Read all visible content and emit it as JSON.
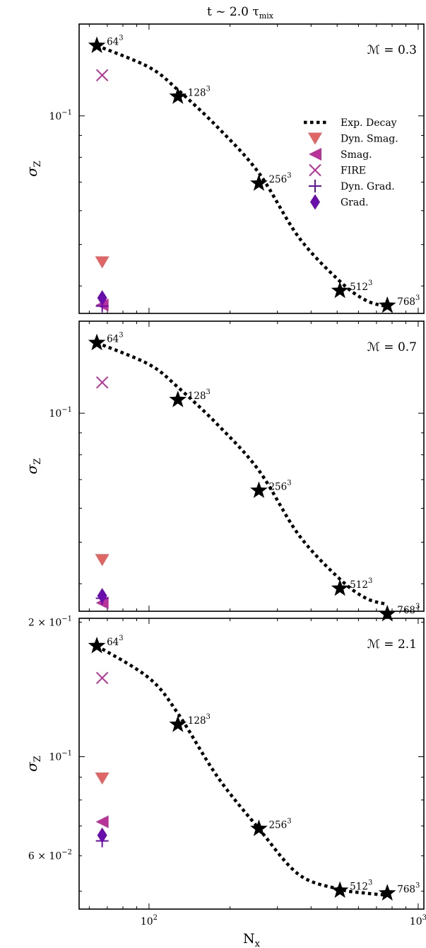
{
  "figure": {
    "title": "t ~ 2.0 τ",
    "title_subscript": "mix",
    "xlabel": "N",
    "xlabel_subscript": "x",
    "ylabel": "σ",
    "ylabel_subscript": "Z"
  },
  "legend": {
    "placement": "right, inside top panel",
    "entries": [
      {
        "label": "Exp. Decay",
        "marker": "dotted-line",
        "color": "#000000"
      },
      {
        "label": "Dyn. Smag.",
        "marker": "triangle-down",
        "color": "#e06666"
      },
      {
        "label": "Smag.",
        "marker": "triangle-left",
        "color": "#b8329a"
      },
      {
        "label": "FIRE",
        "marker": "x",
        "color": "#b8329a"
      },
      {
        "label": "Dyn. Grad.",
        "marker": "plus",
        "color": "#6a0dad"
      },
      {
        "label": "Grad.",
        "marker": "diamond",
        "color": "#6a0dad"
      }
    ]
  },
  "colors": {
    "Dyn. Smag.": "#e06666",
    "Smag.": "#b8329a",
    "FIRE": "#b8329a",
    "Dyn. Grad.": "#6a0dad",
    "Grad.": "#6a0dad",
    "Exp. Decay": "#000000",
    "stars": "#000000"
  },
  "chart_data": [
    {
      "type": "scatter",
      "mach_label": "ℳ = 0.3",
      "xscale": "log",
      "yscale": "log",
      "xlim": [
        55,
        1050
      ],
      "ylim": [
        0.0345,
        0.164
      ],
      "x_ticks": [
        {
          "value": 100,
          "label": "10",
          "exp": "2"
        },
        {
          "value": 1000,
          "label": "10",
          "exp": "3"
        }
      ],
      "y_ticks": [
        {
          "value": 0.1,
          "label": "10",
          "exp": "−1"
        }
      ],
      "series": [
        {
          "name": "Exp. Decay",
          "kind": "line",
          "x": [
            64,
            100,
            128,
            180,
            256,
            360,
            512,
            640,
            768
          ],
          "y": [
            0.146,
            0.13,
            0.115,
            0.094,
            0.0735,
            0.052,
            0.041,
            0.037,
            0.0358
          ]
        },
        {
          "name": "resolution",
          "kind": "stars",
          "x": [
            64,
            128,
            256,
            512,
            768
          ],
          "y": [
            0.146,
            0.111,
            0.0695,
            0.039,
            0.036
          ],
          "labels": [
            "64",
            "128",
            "256",
            "512",
            "768"
          ],
          "label_exp": "3"
        },
        {
          "name": "Dyn. Smag.",
          "kind": "marker",
          "x": [
            67
          ],
          "y": [
            0.0455
          ]
        },
        {
          "name": "Smag.",
          "kind": "marker",
          "x": [
            67
          ],
          "y": [
            0.0361
          ]
        },
        {
          "name": "FIRE",
          "kind": "marker",
          "x": [
            67
          ],
          "y": [
            0.1245
          ]
        },
        {
          "name": "Dyn. Grad.",
          "kind": "marker",
          "x": [
            67
          ],
          "y": [
            0.0359
          ]
        },
        {
          "name": "Grad.",
          "kind": "marker",
          "x": [
            67
          ],
          "y": [
            0.0375
          ]
        }
      ]
    },
    {
      "type": "scatter",
      "mach_label": "ℳ = 0.7",
      "xscale": "log",
      "yscale": "log",
      "xlim": [
        55,
        1050
      ],
      "ylim": [
        0.0345,
        0.164
      ],
      "x_ticks": [
        {
          "value": 100,
          "label": "10",
          "exp": "2"
        },
        {
          "value": 1000,
          "label": "10",
          "exp": "3"
        }
      ],
      "y_ticks": [
        {
          "value": 0.1,
          "label": "10",
          "exp": "−1"
        }
      ],
      "series": [
        {
          "name": "Exp. Decay",
          "kind": "line",
          "x": [
            64,
            100,
            128,
            180,
            256,
            360,
            512,
            640,
            768
          ],
          "y": [
            0.146,
            0.13,
            0.115,
            0.094,
            0.0735,
            0.052,
            0.041,
            0.037,
            0.0358
          ]
        },
        {
          "name": "resolution",
          "kind": "stars",
          "x": [
            64,
            128,
            256,
            512,
            768
          ],
          "y": [
            0.146,
            0.1075,
            0.066,
            0.039,
            0.034
          ],
          "labels": [
            "64",
            "128",
            "256",
            "512",
            "768"
          ],
          "label_exp": "3"
        },
        {
          "name": "Dyn. Smag.",
          "kind": "marker",
          "x": [
            67
          ],
          "y": [
            0.0455
          ]
        },
        {
          "name": "Smag.",
          "kind": "marker",
          "x": [
            67
          ],
          "y": [
            0.0361
          ]
        },
        {
          "name": "FIRE",
          "kind": "marker",
          "x": [
            67
          ],
          "y": [
            0.118
          ]
        },
        {
          "name": "Dyn. Grad.",
          "kind": "marker",
          "x": [
            67
          ],
          "y": [
            0.037
          ]
        },
        {
          "name": "Grad.",
          "kind": "marker",
          "x": [
            67
          ],
          "y": [
            0.0375
          ]
        }
      ]
    },
    {
      "type": "scatter",
      "mach_label": "ℳ = 2.1",
      "xscale": "log",
      "yscale": "log",
      "xlim": [
        55,
        1050
      ],
      "ylim": [
        0.0456,
        0.204
      ],
      "x_ticks": [
        {
          "value": 100,
          "label": "10",
          "exp": "2"
        },
        {
          "value": 1000,
          "label": "10",
          "exp": "3"
        }
      ],
      "y_ticks": [
        {
          "value": 0.2,
          "label": "2 × 10",
          "exp": "−1"
        },
        {
          "value": 0.1,
          "label": "10",
          "exp": "−1"
        },
        {
          "value": 0.06,
          "label": "6 × 10",
          "exp": "−2"
        }
      ],
      "series": [
        {
          "name": "Exp. Decay",
          "kind": "line",
          "x": [
            64,
            100,
            128,
            180,
            256,
            360,
            512,
            640,
            768
          ],
          "y": [
            0.177,
            0.15,
            0.125,
            0.09,
            0.069,
            0.0545,
            0.0505,
            0.0495,
            0.049
          ]
        },
        {
          "name": "resolution",
          "kind": "stars",
          "x": [
            64,
            128,
            256,
            512,
            768
          ],
          "y": [
            0.177,
            0.118,
            0.069,
            0.0502,
            0.0495
          ],
          "labels": [
            "64",
            "128",
            "256",
            "512",
            "768"
          ],
          "label_exp": "3"
        },
        {
          "name": "Dyn. Smag.",
          "kind": "marker",
          "x": [
            67
          ],
          "y": [
            0.0895
          ]
        },
        {
          "name": "Smag.",
          "kind": "marker",
          "x": [
            67
          ],
          "y": [
            0.0715
          ]
        },
        {
          "name": "FIRE",
          "kind": "marker",
          "x": [
            67
          ],
          "y": [
            0.15
          ]
        },
        {
          "name": "Dyn. Grad.",
          "kind": "marker",
          "x": [
            67
          ],
          "y": [
            0.0648
          ]
        },
        {
          "name": "Grad.",
          "kind": "marker",
          "x": [
            67
          ],
          "y": [
            0.0667
          ]
        }
      ]
    }
  ]
}
